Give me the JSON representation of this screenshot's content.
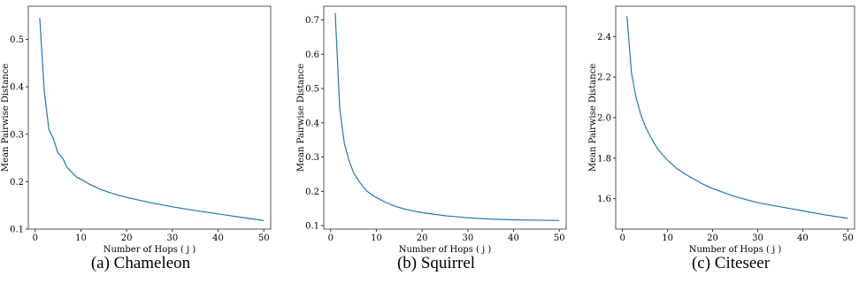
{
  "figure": {
    "panels": [
      {
        "caption": "(a) Chameleon"
      },
      {
        "caption": "(b) Squirrel"
      },
      {
        "caption": "(c) Citeseer"
      }
    ],
    "line_color": "#1f77b4"
  },
  "chart_data": [
    {
      "type": "line",
      "title": "",
      "xlabel": "Number of Hops ( j )",
      "ylabel": "Mean Pairwise Distance",
      "xlim": [
        -1.5,
        51.5
      ],
      "ylim": [
        0.1,
        0.57
      ],
      "xticks": [
        0,
        10,
        20,
        30,
        40,
        50
      ],
      "xtick_labels": [
        "0",
        "10",
        "20",
        "30",
        "40",
        "50"
      ],
      "yticks": [
        0.1,
        0.2,
        0.3,
        0.4,
        0.5
      ],
      "ytick_labels": [
        "0.1",
        "0.2",
        "0.3",
        "0.4",
        "0.5"
      ],
      "grid": false,
      "series": [
        {
          "x": [
            1,
            2,
            3,
            4,
            5,
            6,
            7,
            8,
            9,
            10,
            12,
            14,
            16,
            18,
            20,
            25,
            30,
            35,
            40,
            45,
            50
          ],
          "y": [
            0.545,
            0.39,
            0.31,
            0.29,
            0.26,
            0.25,
            0.23,
            0.22,
            0.21,
            0.205,
            0.194,
            0.185,
            0.178,
            0.172,
            0.167,
            0.156,
            0.147,
            0.139,
            0.132,
            0.125,
            0.118
          ]
        }
      ]
    },
    {
      "type": "line",
      "title": "",
      "xlabel": "Number of Hops ( j )",
      "ylabel": "Mean Pairwise Distance",
      "xlim": [
        -1.5,
        51.5
      ],
      "ylim": [
        0.09,
        0.74
      ],
      "xticks": [
        0,
        10,
        20,
        30,
        40,
        50
      ],
      "xtick_labels": [
        "0",
        "10",
        "20",
        "30",
        "40",
        "50"
      ],
      "yticks": [
        0.1,
        0.2,
        0.3,
        0.4,
        0.5,
        0.6,
        0.7
      ],
      "ytick_labels": [
        "0.1",
        "0.2",
        "0.3",
        "0.4",
        "0.5",
        "0.6",
        "0.7"
      ],
      "grid": false,
      "series": [
        {
          "x": [
            1,
            2,
            3,
            4,
            5,
            6,
            7,
            8,
            9,
            10,
            12,
            14,
            16,
            18,
            20,
            25,
            30,
            35,
            40,
            45,
            50
          ],
          "y": [
            0.72,
            0.44,
            0.34,
            0.29,
            0.255,
            0.233,
            0.215,
            0.2,
            0.19,
            0.182,
            0.168,
            0.157,
            0.149,
            0.143,
            0.138,
            0.129,
            0.123,
            0.119,
            0.117,
            0.116,
            0.115
          ]
        }
      ]
    },
    {
      "type": "line",
      "title": "",
      "xlabel": "Number of Hops ( j )",
      "ylabel": "Mean Pairwise Distance",
      "xlim": [
        -1.5,
        51.5
      ],
      "ylim": [
        1.45,
        2.55
      ],
      "xticks": [
        0,
        10,
        20,
        30,
        40,
        50
      ],
      "xtick_labels": [
        "0",
        "10",
        "20",
        "30",
        "40",
        "50"
      ],
      "yticks": [
        1.6,
        1.8,
        2.0,
        2.2,
        2.4
      ],
      "ytick_labels": [
        "1.6",
        "1.8",
        "2.0",
        "2.2",
        "2.4"
      ],
      "grid": false,
      "series": [
        {
          "x": [
            1,
            2,
            3,
            4,
            5,
            6,
            7,
            8,
            9,
            10,
            12,
            14,
            16,
            18,
            20,
            25,
            30,
            35,
            40,
            45,
            50
          ],
          "y": [
            2.5,
            2.22,
            2.1,
            2.02,
            1.96,
            1.915,
            1.875,
            1.84,
            1.815,
            1.79,
            1.75,
            1.72,
            1.695,
            1.67,
            1.65,
            1.61,
            1.58,
            1.56,
            1.54,
            1.52,
            1.503
          ]
        }
      ]
    }
  ]
}
